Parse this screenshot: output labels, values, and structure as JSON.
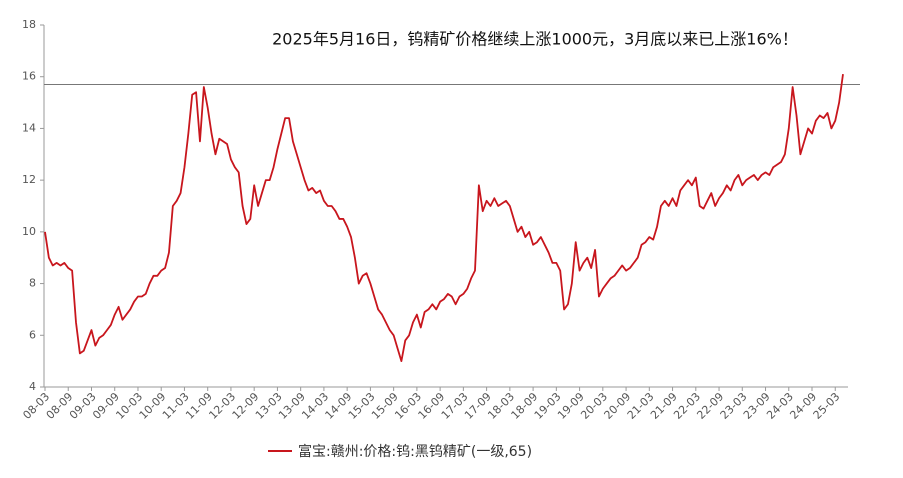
{
  "chart_data": {
    "type": "line",
    "title": "2025年5月16日，钨精矿价格继续上涨1000元，3月底以来已上涨16%！",
    "x": [
      "08-03",
      "08-04",
      "08-05",
      "08-06",
      "08-07",
      "08-08",
      "08-09",
      "08-10",
      "08-11",
      "08-12",
      "09-01",
      "09-02",
      "09-03",
      "09-04",
      "09-05",
      "09-06",
      "09-07",
      "09-08",
      "09-09",
      "09-10",
      "09-11",
      "09-12",
      "10-01",
      "10-02",
      "10-03",
      "10-04",
      "10-05",
      "10-06",
      "10-07",
      "10-08",
      "10-09",
      "10-10",
      "10-11",
      "10-12",
      "11-01",
      "11-02",
      "11-03",
      "11-04",
      "11-05",
      "11-06",
      "11-07",
      "11-08",
      "11-09",
      "11-10",
      "11-11",
      "11-12",
      "12-01",
      "12-02",
      "12-03",
      "12-04",
      "12-05",
      "12-06",
      "12-07",
      "12-08",
      "12-09",
      "12-10",
      "12-11",
      "12-12",
      "13-01",
      "13-02",
      "13-03",
      "13-04",
      "13-05",
      "13-06",
      "13-07",
      "13-08",
      "13-09",
      "13-10",
      "13-11",
      "13-12",
      "14-01",
      "14-02",
      "14-03",
      "14-04",
      "14-05",
      "14-06",
      "14-07",
      "14-08",
      "14-09",
      "14-10",
      "14-11",
      "14-12",
      "15-01",
      "15-02",
      "15-03",
      "15-04",
      "15-05",
      "15-06",
      "15-07",
      "15-08",
      "15-09",
      "15-10",
      "15-11",
      "15-12",
      "16-01",
      "16-02",
      "16-03",
      "16-04",
      "16-05",
      "16-06",
      "16-07",
      "16-08",
      "16-09",
      "16-10",
      "16-11",
      "16-12",
      "17-01",
      "17-02",
      "17-03",
      "17-04",
      "17-05",
      "17-06",
      "17-07",
      "17-08",
      "17-09",
      "17-10",
      "17-11",
      "17-12",
      "18-01",
      "18-02",
      "18-03",
      "18-04",
      "18-05",
      "18-06",
      "18-07",
      "18-08",
      "18-09",
      "18-10",
      "18-11",
      "18-12",
      "19-01",
      "19-02",
      "19-03",
      "19-04",
      "19-05",
      "19-06",
      "19-07",
      "19-08",
      "19-09",
      "19-10",
      "19-11",
      "19-12",
      "20-01",
      "20-02",
      "20-03",
      "20-04",
      "20-05",
      "20-06",
      "20-07",
      "20-08",
      "20-09",
      "20-10",
      "20-11",
      "20-12",
      "21-01",
      "21-02",
      "21-03",
      "21-04",
      "21-05",
      "21-06",
      "21-07",
      "21-08",
      "21-09",
      "21-10",
      "21-11",
      "21-12",
      "22-01",
      "22-02",
      "22-03",
      "22-04",
      "22-05",
      "22-06",
      "22-07",
      "22-08",
      "22-09",
      "22-10",
      "22-11",
      "22-12",
      "23-01",
      "23-02",
      "23-03",
      "23-04",
      "23-05",
      "23-06",
      "23-07",
      "23-08",
      "23-09",
      "23-10",
      "23-11",
      "23-12",
      "24-01",
      "24-02",
      "24-03",
      "24-04",
      "24-05",
      "24-06",
      "24-07",
      "24-08",
      "24-09",
      "24-10",
      "24-11",
      "24-12",
      "25-01",
      "25-02",
      "25-03",
      "25-04",
      "25-05"
    ],
    "series": [
      {
        "name": "富宝:赣州:价格:钨:黑钨精矿(一级,65)",
        "color": "#c8161d",
        "values": [
          10.0,
          9.0,
          8.7,
          8.8,
          8.7,
          8.8,
          8.6,
          8.5,
          6.5,
          5.3,
          5.4,
          5.8,
          6.2,
          5.6,
          5.9,
          6.0,
          6.2,
          6.4,
          6.8,
          7.1,
          6.6,
          6.8,
          7.0,
          7.3,
          7.5,
          7.5,
          7.6,
          8.0,
          8.3,
          8.3,
          8.5,
          8.6,
          9.2,
          11.0,
          11.2,
          11.5,
          12.5,
          13.8,
          15.3,
          15.4,
          13.5,
          15.6,
          14.8,
          13.8,
          13.0,
          13.6,
          13.5,
          13.4,
          12.8,
          12.5,
          12.3,
          11.0,
          10.3,
          10.5,
          11.8,
          11.0,
          11.5,
          12.0,
          12.0,
          12.5,
          13.2,
          13.8,
          14.4,
          14.4,
          13.5,
          13.0,
          12.5,
          12.0,
          11.6,
          11.7,
          11.5,
          11.6,
          11.2,
          11.0,
          11.0,
          10.8,
          10.5,
          10.5,
          10.2,
          9.8,
          9.0,
          8.0,
          8.3,
          8.4,
          8.0,
          7.5,
          7.0,
          6.8,
          6.5,
          6.2,
          6.0,
          5.5,
          5.0,
          5.8,
          6.0,
          6.5,
          6.8,
          6.3,
          6.9,
          7.0,
          7.2,
          7.0,
          7.3,
          7.4,
          7.6,
          7.5,
          7.2,
          7.5,
          7.6,
          7.8,
          8.2,
          8.5,
          11.8,
          10.8,
          11.2,
          11.0,
          11.3,
          11.0,
          11.1,
          11.2,
          11.0,
          10.5,
          10.0,
          10.2,
          9.8,
          10.0,
          9.5,
          9.6,
          9.8,
          9.5,
          9.2,
          8.8,
          8.8,
          8.5,
          7.0,
          7.2,
          8.0,
          9.6,
          8.5,
          8.8,
          9.0,
          8.6,
          9.3,
          7.5,
          7.8,
          8.0,
          8.2,
          8.3,
          8.5,
          8.7,
          8.5,
          8.6,
          8.8,
          9.0,
          9.5,
          9.6,
          9.8,
          9.7,
          10.2,
          11.0,
          11.2,
          11.0,
          11.3,
          11.0,
          11.6,
          11.8,
          12.0,
          11.8,
          12.1,
          11.0,
          10.9,
          11.2,
          11.5,
          11.0,
          11.3,
          11.5,
          11.8,
          11.6,
          12.0,
          12.2,
          11.8,
          12.0,
          12.1,
          12.2,
          12.0,
          12.2,
          12.3,
          12.2,
          12.5,
          12.6,
          12.7,
          13.0,
          14.0,
          15.6,
          14.5,
          13.0,
          13.5,
          14.0,
          13.8,
          14.3,
          14.5,
          14.4,
          14.6,
          14.0,
          14.3,
          15.0,
          16.1
        ]
      }
    ],
    "xticks": [
      "08-03",
      "08-09",
      "09-03",
      "09-09",
      "10-03",
      "10-09",
      "11-03",
      "11-09",
      "12-03",
      "12-09",
      "13-03",
      "13-09",
      "14-03",
      "14-09",
      "15-03",
      "15-09",
      "16-03",
      "16-09",
      "17-03",
      "17-09",
      "18-03",
      "18-09",
      "19-03",
      "19-09",
      "20-03",
      "20-09",
      "21-03",
      "21-09",
      "22-03",
      "22-09",
      "23-03",
      "23-09",
      "24-03",
      "24-09",
      "25-03"
    ],
    "ylim": [
      4,
      18
    ],
    "yticks": [
      4,
      6,
      8,
      10,
      12,
      14,
      16,
      18
    ],
    "reference_line": 15.7
  }
}
